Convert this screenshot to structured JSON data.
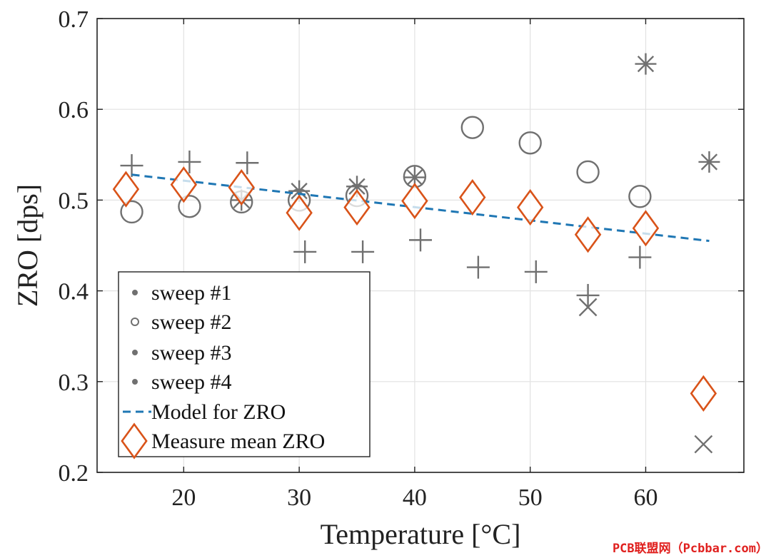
{
  "chart_data": {
    "type": "scatter",
    "xlabel": "Temperature [°C]",
    "ylabel": "ZRO [dps]",
    "xlim": [
      12.5,
      68.5
    ],
    "ylim": [
      0.2,
      0.7
    ],
    "xticks": [
      "20",
      "30",
      "40",
      "50",
      "60"
    ],
    "yticks": [
      "0.2",
      "0.3",
      "0.4",
      "0.5",
      "0.6",
      "0.7"
    ],
    "grid": true,
    "legend_position": "bottom-left",
    "series": [
      {
        "name": "sweep #1",
        "marker": "asterisk",
        "color": "#707070",
        "points": [
          [
            25,
            0.5
          ],
          [
            30,
            0.51
          ],
          [
            35,
            0.515
          ],
          [
            40,
            0.525
          ],
          [
            60,
            0.65
          ],
          [
            65.5,
            0.542
          ]
        ]
      },
      {
        "name": "sweep #2",
        "marker": "circle",
        "color": "#707070",
        "points": [
          [
            15.5,
            0.487
          ],
          [
            20.5,
            0.493
          ],
          [
            25,
            0.498
          ],
          [
            30,
            0.5
          ],
          [
            35,
            0.505
          ],
          [
            40,
            0.526
          ],
          [
            45,
            0.58
          ],
          [
            50,
            0.563
          ],
          [
            55,
            0.531
          ],
          [
            59.5,
            0.504
          ]
        ]
      },
      {
        "name": "sweep #3",
        "marker": "x",
        "color": "#707070",
        "points": [
          [
            55,
            0.382
          ],
          [
            65,
            0.231
          ]
        ]
      },
      {
        "name": "sweep #4",
        "marker": "plus",
        "color": "#707070",
        "points": [
          [
            15.5,
            0.538
          ],
          [
            20.5,
            0.542
          ],
          [
            25.5,
            0.541
          ],
          [
            30.5,
            0.443
          ],
          [
            35.5,
            0.443
          ],
          [
            40.5,
            0.456
          ],
          [
            45.5,
            0.426
          ],
          [
            50.5,
            0.421
          ],
          [
            55,
            0.395
          ],
          [
            59.5,
            0.437
          ]
        ]
      },
      {
        "name": "Model for ZRO",
        "style": "dashed-line",
        "color": "#1f77b4",
        "points": [
          [
            15.5,
            0.528
          ],
          [
            65.5,
            0.455
          ]
        ]
      },
      {
        "name": "Measure mean ZRO",
        "marker": "diamond",
        "color": "#d95319",
        "points": [
          [
            15,
            0.512
          ],
          [
            20,
            0.517
          ],
          [
            25,
            0.514
          ],
          [
            30,
            0.486
          ],
          [
            35,
            0.492
          ],
          [
            40,
            0.499
          ],
          [
            45,
            0.503
          ],
          [
            50,
            0.492
          ],
          [
            55,
            0.462
          ],
          [
            60,
            0.469
          ],
          [
            65,
            0.287
          ]
        ]
      }
    ]
  },
  "watermark": "PCB联盟网（Pcbbar.com）"
}
